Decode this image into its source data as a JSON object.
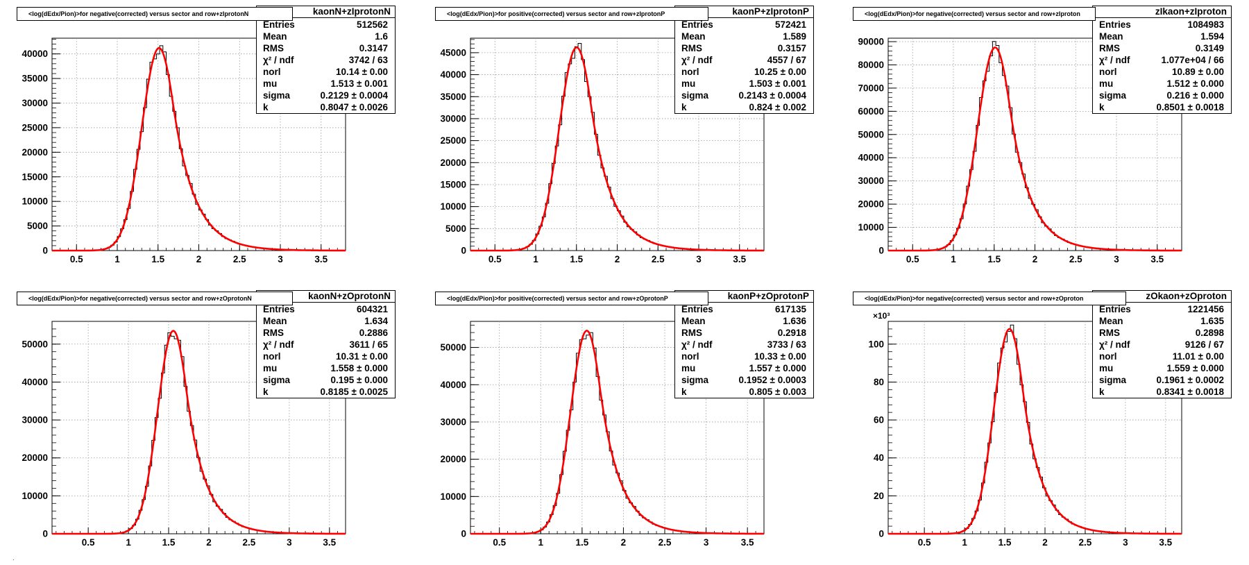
{
  "chart_data": [
    {
      "type": "histogram",
      "title": "<log(dEdx/Pion)>for negative(corrected) versus sector and row+zIprotonN",
      "stats_name": "kaonN+zIprotonN",
      "stats": [
        {
          "key": "Entries",
          "value": "512562"
        },
        {
          "key": "Mean",
          "value": "1.6"
        },
        {
          "key": "RMS",
          "value": "0.3147"
        },
        {
          "key": "χ² / ndf",
          "value": "3742 / 63"
        },
        {
          "key": "norl",
          "value": "10.14 ± 0.00"
        },
        {
          "key": "mu",
          "value": "1.513 ± 0.001"
        },
        {
          "key": "sigma",
          "value": "0.2129 ± 0.0004"
        },
        {
          "key": "k",
          "value": "0.8047 ± 0.0026"
        }
      ],
      "xlim": [
        0.2,
        3.8
      ],
      "ylim": [
        0,
        43200
      ],
      "xticks": [
        "0.5",
        "1",
        "1.5",
        "2",
        "2.5",
        "3",
        "3.5"
      ],
      "yticks": [
        "0",
        "5000",
        "10000",
        "15000",
        "20000",
        "25000",
        "30000",
        "35000",
        "40000"
      ],
      "y_exponent": "",
      "peak": 41200,
      "mu": 1.513,
      "sigma": 0.2129,
      "k": 0.8047,
      "grid": true
    },
    {
      "type": "histogram",
      "title": "<log(dEdx/Pion)>for positive(corrected) versus sector and row+zIprotonP",
      "stats_name": "kaonP+zIprotonP",
      "stats": [
        {
          "key": "Entries",
          "value": "572421"
        },
        {
          "key": "Mean",
          "value": "1.589"
        },
        {
          "key": "RMS",
          "value": "0.3157"
        },
        {
          "key": "χ² / ndf",
          "value": "4557 / 67"
        },
        {
          "key": "norl",
          "value": "10.25 ± 0.00"
        },
        {
          "key": "mu",
          "value": "1.503 ± 0.001"
        },
        {
          "key": "sigma",
          "value": "0.2143 ± 0.0004"
        },
        {
          "key": "k",
          "value": "0.824 ± 0.002"
        }
      ],
      "xlim": [
        0.2,
        3.8
      ],
      "ylim": [
        0,
        48300
      ],
      "xticks": [
        "0.5",
        "1",
        "1.5",
        "2",
        "2.5",
        "3",
        "3.5"
      ],
      "yticks": [
        "0",
        "5000",
        "10000",
        "15000",
        "20000",
        "25000",
        "30000",
        "35000",
        "40000",
        "45000"
      ],
      "y_exponent": "",
      "peak": 46200,
      "mu": 1.503,
      "sigma": 0.2143,
      "k": 0.824,
      "grid": true
    },
    {
      "type": "histogram",
      "title": "<log(dEdx/Pion)>for negative(corrected) versus sector and row+zIproton",
      "stats_name": "zIkaon+zIproton",
      "stats": [
        {
          "key": "Entries",
          "value": "1084983"
        },
        {
          "key": "Mean",
          "value": "1.594"
        },
        {
          "key": "RMS",
          "value": "0.3149"
        },
        {
          "key": "χ² / ndf",
          "value": "1.077e+04 / 66"
        },
        {
          "key": "norl",
          "value": "10.89 ± 0.00"
        },
        {
          "key": "mu",
          "value": "1.512 ± 0.000"
        },
        {
          "key": "sigma",
          "value": "0.216 ± 0.000"
        },
        {
          "key": "k",
          "value": "0.8501 ± 0.0018"
        }
      ],
      "xlim": [
        0.2,
        3.8
      ],
      "ylim": [
        0,
        91500
      ],
      "xticks": [
        "0.5",
        "1",
        "1.5",
        "2",
        "2.5",
        "3",
        "3.5"
      ],
      "yticks": [
        "0",
        "10000",
        "20000",
        "30000",
        "40000",
        "50000",
        "60000",
        "70000",
        "80000",
        "90000"
      ],
      "y_exponent": "",
      "peak": 87500,
      "mu": 1.512,
      "sigma": 0.216,
      "k": 0.8501,
      "grid": true
    },
    {
      "type": "histogram",
      "title": "<log(dEdx/Pion)>for negative(corrected) versus sector and row+zOprotonN",
      "stats_name": "kaonN+zOprotonN",
      "stats": [
        {
          "key": "Entries",
          "value": "604321"
        },
        {
          "key": "Mean",
          "value": "1.634"
        },
        {
          "key": "RMS",
          "value": "0.2886"
        },
        {
          "key": "χ² / ndf",
          "value": "3611 / 65"
        },
        {
          "key": "norl",
          "value": "10.31 ± 0.00"
        },
        {
          "key": "mu",
          "value": "1.558 ± 0.000"
        },
        {
          "key": "sigma",
          "value": "0.195 ± 0.000"
        },
        {
          "key": "k",
          "value": "0.8185 ± 0.0025"
        }
      ],
      "xlim": [
        0.05,
        3.7
      ],
      "ylim": [
        0,
        56000
      ],
      "xticks": [
        "0.5",
        "1",
        "1.5",
        "2",
        "2.5",
        "3",
        "3.5"
      ],
      "yticks": [
        "0",
        "10000",
        "20000",
        "30000",
        "40000",
        "50000"
      ],
      "y_exponent": "",
      "peak": 53500,
      "mu": 1.558,
      "sigma": 0.195,
      "k": 0.8185,
      "grid": true
    },
    {
      "type": "histogram",
      "title": "<log(dEdx/Pion)>for positive(corrected) versus sector and row+zOprotonP",
      "stats_name": "kaonP+zOprotonP",
      "stats": [
        {
          "key": "Entries",
          "value": "617135"
        },
        {
          "key": "Mean",
          "value": "1.636"
        },
        {
          "key": "RMS",
          "value": "0.2918"
        },
        {
          "key": "χ² / ndf",
          "value": "3733 / 63"
        },
        {
          "key": "norl",
          "value": "10.33 ± 0.00"
        },
        {
          "key": "mu",
          "value": "1.557 ± 0.000"
        },
        {
          "key": "sigma",
          "value": "0.1952 ± 0.0003"
        },
        {
          "key": "k",
          "value": "0.805 ± 0.003"
        }
      ],
      "xlim": [
        0.15,
        3.7
      ],
      "ylim": [
        0,
        57000
      ],
      "xticks": [
        "0.5",
        "1",
        "1.5",
        "2",
        "2.5",
        "3",
        "3.5"
      ],
      "yticks": [
        "0",
        "10000",
        "20000",
        "30000",
        "40000",
        "50000"
      ],
      "y_exponent": "",
      "peak": 54500,
      "mu": 1.557,
      "sigma": 0.1952,
      "k": 0.805,
      "grid": true
    },
    {
      "type": "histogram",
      "title": "<log(dEdx/Pion)>for negative(corrected) versus sector and row+zOproton",
      "stats_name": "zOkaon+zOproton",
      "stats": [
        {
          "key": "Entries",
          "value": "1221456"
        },
        {
          "key": "Mean",
          "value": "1.635"
        },
        {
          "key": "RMS",
          "value": "0.2898"
        },
        {
          "key": "χ² / ndf",
          "value": "9126 / 67"
        },
        {
          "key": "norl",
          "value": "11.01 ± 0.00"
        },
        {
          "key": "mu",
          "value": "1.559 ± 0.000"
        },
        {
          "key": "sigma",
          "value": "0.1961 ± 0.0002"
        },
        {
          "key": "k",
          "value": "0.8341 ± 0.0018"
        }
      ],
      "xlim": [
        0.05,
        3.7
      ],
      "ylim": [
        0,
        112000
      ],
      "xticks": [
        "0.5",
        "1",
        "1.5",
        "2",
        "2.5",
        "3",
        "3.5"
      ],
      "yticks": [
        "0",
        "20",
        "40",
        "60",
        "80",
        "100"
      ],
      "y_exponent": "×10³",
      "peak": 108000,
      "mu": 1.559,
      "sigma": 0.1961,
      "k": 0.8341,
      "grid": true
    }
  ],
  "colors": {
    "fit": "#ff0000",
    "hist": "#000000",
    "grid": "#999999",
    "background": "#ffffff"
  }
}
